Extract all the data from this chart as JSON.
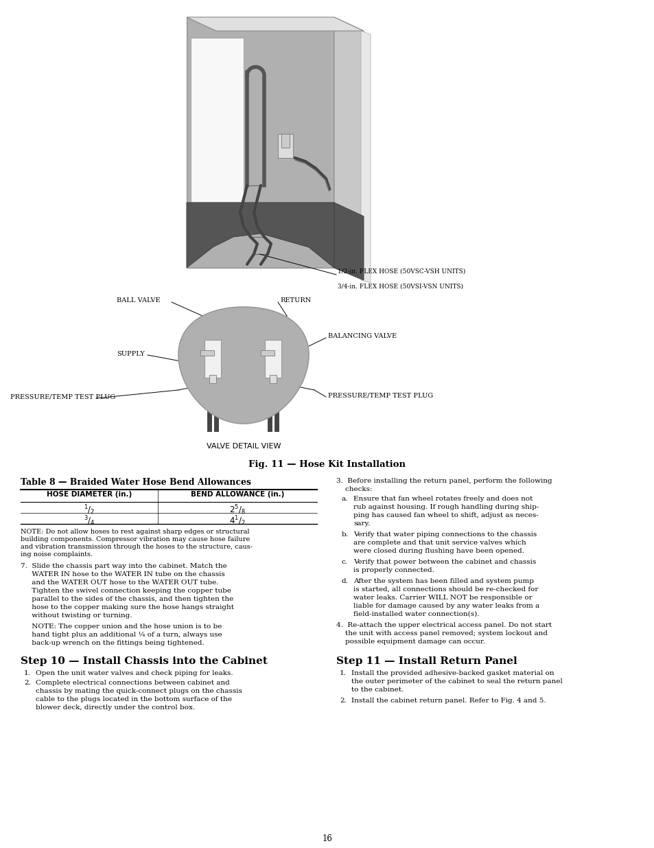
{
  "page_number": "16",
  "fig_caption": "Fig. 11 — Hose Kit Installation",
  "valve_detail_label": "VALVE DETAIL VIEW",
  "table_title": "Table 8 — Braided Water Hose Bend Allowances",
  "table_headers": [
    "HOSE DIAMETER (in.)",
    "BEND ALLOWANCE (in.)"
  ],
  "note_text": "NOTE: Do not allow hoses to rest against sharp edges or structural building components. Compressor vibration may cause hose failure and vibration transmission through the hoses to the structure, caus-\ning noise complaints.",
  "item7_text": "Slide the chassis part way into the cabinet. Match the WATER IN hose to the WATER IN tube on the chassis and the WATER OUT hose to the WATER OUT tube. Tighten the swivel connection keeping the copper tube parallel to the sides of the chassis, and then tighten the hose to the copper making sure the hose hangs straight without twisting or turning.",
  "item7_note": "NOTE: The copper union and the hose union is to be hand tight plus an additional $^{1}/_{4}$ of a turn, always use back-up wrench on the fittings being tightened.",
  "step10_title": "Step 10 — Install Chassis into the Cabinet",
  "step10_item1": "Open the unit water valves and check piping for leaks.",
  "step10_item2": "Complete electrical connections between cabinet and chassis by mating the quick-connect plugs on the chassis cable to the plugs located in the bottom surface of the blower deck, directly under the control box.",
  "right_item3": "Before installing the return panel, perform the following checks:",
  "right_item3a": "Ensure that fan wheel rotates freely and does not rub against housing. If rough handling during ship-\nping has caused fan wheel to shift, adjust as neces-\nsary.",
  "right_item3b": "Verify that water piping connections to the chassis are complete and that unit service valves which were closed during flushing have been opened.",
  "right_item3c": "Verify that power between the cabinet and chassis is properly connected.",
  "right_item3d": "After the system has been filled and system pump is started, all connections should be re-checked for water leaks. Carrier WILL NOT be responsible or liable for damage caused by any water leaks from a field-installed water connection(s).",
  "right_item4": "Re-attach the upper electrical access panel. Do not start the unit with access panel removed; system lockout and possible equipment damage can occur.",
  "step11_title": "Step 11 — Install Return Panel",
  "step11_item1": "Install the provided adhesive-backed gasket material on the outer perimeter of the cabinet to seal the return panel to the cabinet.",
  "step11_item2": "Install the cabinet return panel. Refer to Fig. 4 and 5.",
  "bg_color": "#ffffff"
}
